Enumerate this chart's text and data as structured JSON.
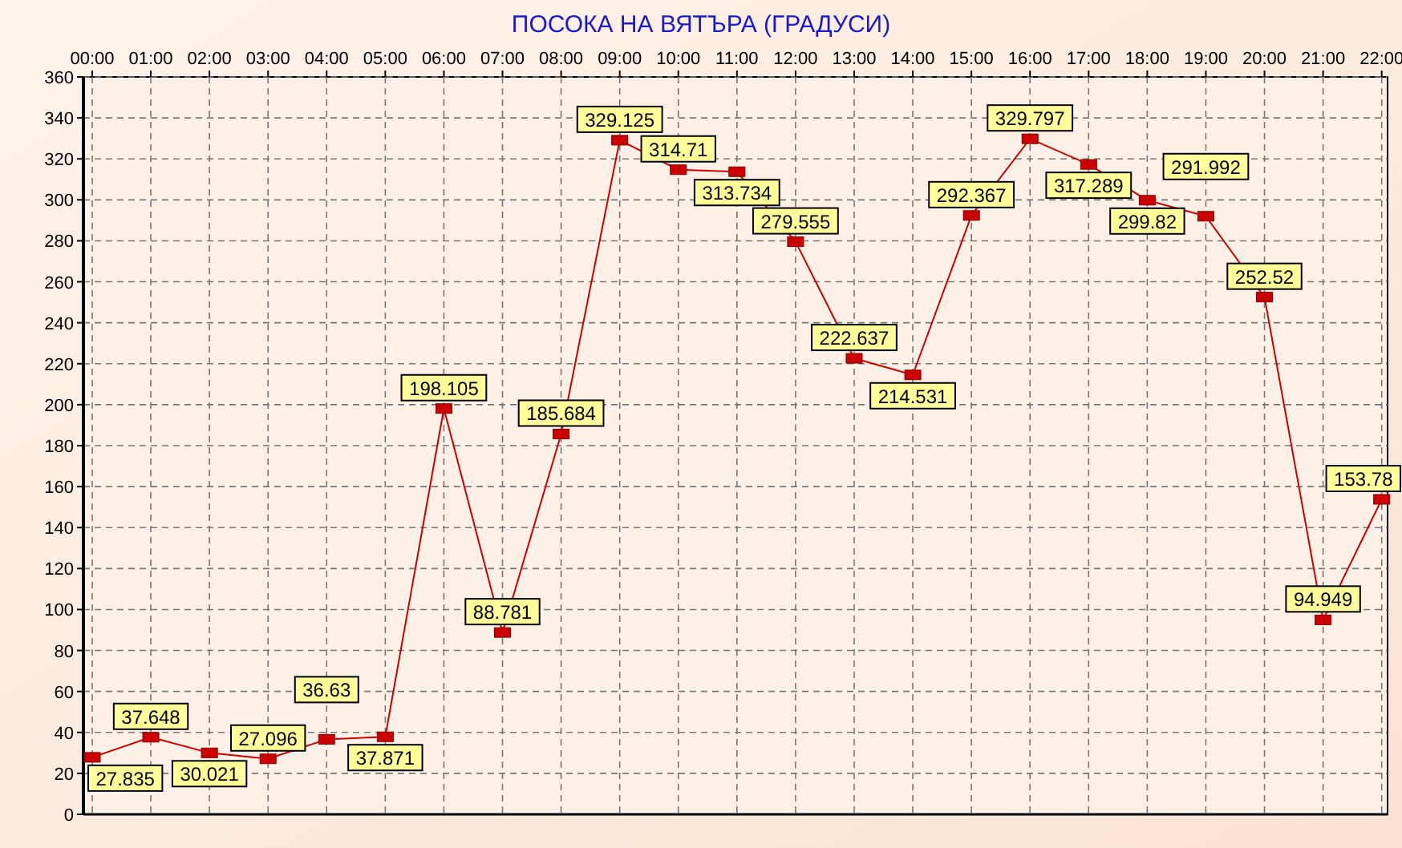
{
  "chart_data": {
    "type": "line",
    "title": "ПОСОКА НА ВЯТЪРА    (ГРАДУСИ)",
    "x": [
      0,
      1,
      2,
      3,
      4,
      5,
      6,
      7,
      8,
      9,
      10,
      11,
      12,
      13,
      14,
      15,
      16,
      17,
      18,
      19,
      20,
      21,
      22
    ],
    "series": [
      {
        "color": "#cc0000",
        "values": [
          27.835,
          37.648,
          30.021,
          27.096,
          36.63,
          37.871,
          198.105,
          88.781,
          185.684,
          329.125,
          314.71,
          313.734,
          279.555,
          222.637,
          214.531,
          292.367,
          329.797,
          317.289,
          299.82,
          291.992,
          252.52,
          94.949,
          153.78
        ]
      }
    ],
    "xlim": [
      -0.15,
      22.1
    ],
    "xticks": [
      {
        "value": 0,
        "label": "00:00"
      },
      {
        "value": 1,
        "label": "01:00"
      },
      {
        "value": 2,
        "label": "02:00"
      },
      {
        "value": 3,
        "label": "03:00"
      },
      {
        "value": 4,
        "label": "04:00"
      },
      {
        "value": 5,
        "label": "05:00"
      },
      {
        "value": 6,
        "label": "06:00"
      },
      {
        "value": 7,
        "label": "07:00"
      },
      {
        "value": 8,
        "label": "08:00"
      },
      {
        "value": 9,
        "label": "09:00"
      },
      {
        "value": 10,
        "label": "10:00"
      },
      {
        "value": 11,
        "label": "11:00"
      },
      {
        "value": 12,
        "label": "12:00"
      },
      {
        "value": 13,
        "label": "13:00"
      },
      {
        "value": 14,
        "label": "14:00"
      },
      {
        "value": 15,
        "label": "15:00"
      },
      {
        "value": 16,
        "label": "16:00"
      },
      {
        "value": 17,
        "label": "17:00"
      },
      {
        "value": 18,
        "label": "18:00"
      },
      {
        "value": 19,
        "label": "19:00"
      },
      {
        "value": 20,
        "label": "20:00"
      },
      {
        "value": 21,
        "label": "21:00"
      },
      {
        "value": 22,
        "label": "22:00"
      }
    ],
    "ylim": [
      0,
      360
    ],
    "yticks": [
      0,
      20,
      40,
      60,
      80,
      100,
      120,
      140,
      160,
      180,
      200,
      220,
      240,
      260,
      280,
      300,
      320,
      340,
      360
    ],
    "grid": true,
    "marker": "square",
    "line_style": "solid",
    "data_labels": true
  }
}
